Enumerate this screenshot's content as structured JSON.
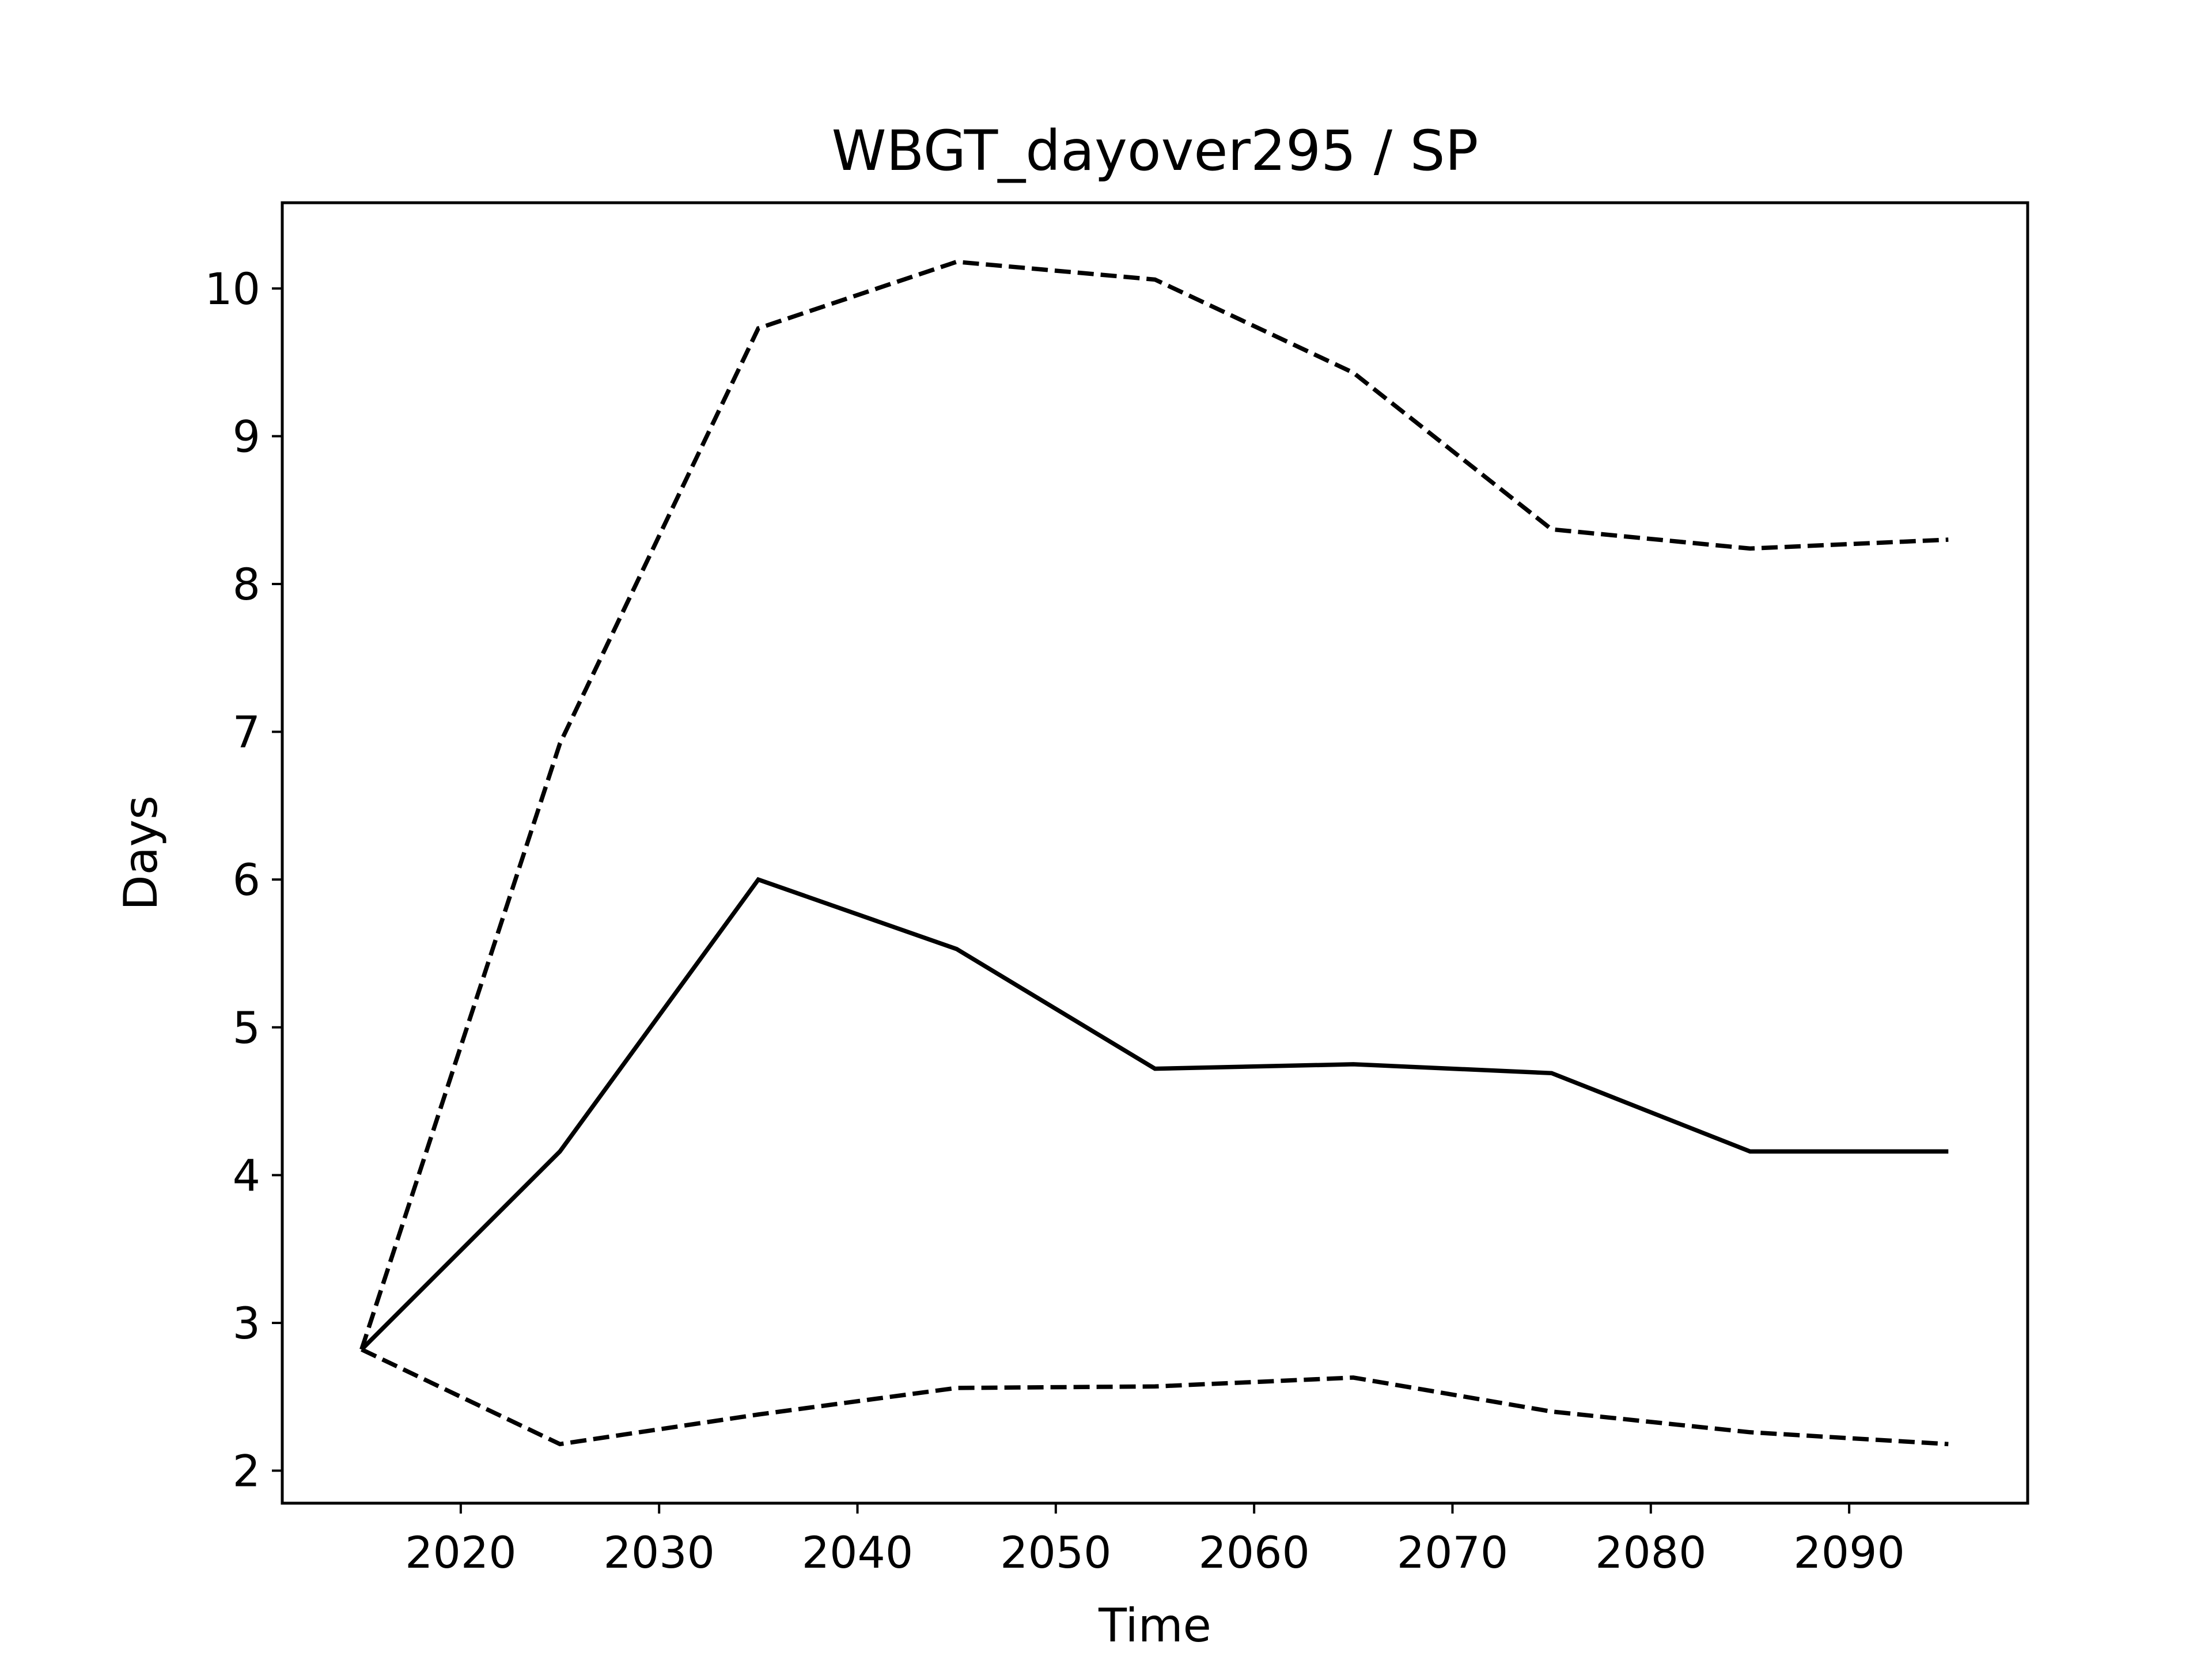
{
  "chart_data": {
    "type": "line",
    "title": "WBGT_dayover295 / SP",
    "xlabel": "Time",
    "ylabel": "Days",
    "x": [
      2015,
      2025,
      2035,
      2045,
      2055,
      2065,
      2075,
      2085,
      2095
    ],
    "xlim": [
      2011,
      2099
    ],
    "ylim": [
      1.78,
      10.58
    ],
    "xticks": [
      2020,
      2030,
      2040,
      2050,
      2060,
      2070,
      2080,
      2090
    ],
    "yticks": [
      2,
      3,
      4,
      5,
      6,
      7,
      8,
      9,
      10
    ],
    "grid": false,
    "series": [
      {
        "style": "dashed",
        "color": "#000000",
        "values": [
          2.82,
          6.92,
          9.73,
          10.18,
          10.06,
          9.43,
          8.37,
          8.24,
          8.3
        ]
      },
      {
        "style": "solid",
        "color": "#000000",
        "values": [
          2.82,
          4.16,
          6.0,
          5.53,
          4.72,
          4.75,
          4.69,
          4.16,
          4.16
        ]
      },
      {
        "style": "dashed",
        "color": "#000000",
        "values": [
          2.82,
          2.18,
          2.38,
          2.56,
          2.57,
          2.63,
          2.4,
          2.26,
          2.18
        ]
      }
    ]
  }
}
